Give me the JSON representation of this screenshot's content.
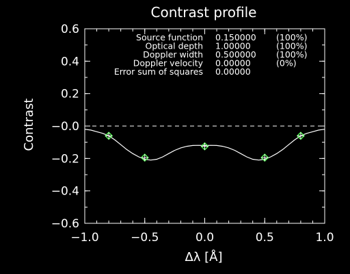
{
  "chart_data": {
    "type": "line",
    "title": "Contrast profile",
    "xlabel": "Δλ [Å]",
    "ylabel": "Contrast",
    "xlim": [
      -1.0,
      1.0
    ],
    "ylim": [
      -0.6,
      0.6
    ],
    "xticks": [
      "−1.0",
      "−0.5",
      "0.0",
      "0.5",
      "1.0"
    ],
    "xtick_values": [
      -1.0,
      -0.5,
      0.0,
      0.5,
      1.0
    ],
    "yticks": [
      "0.6",
      "0.4",
      "0.2",
      "−0.0",
      "−0.2",
      "−0.4",
      "−0.6"
    ],
    "ytick_values": [
      0.6,
      0.4,
      0.2,
      0.0,
      -0.2,
      -0.4,
      -0.6
    ],
    "colors": {
      "background": "#000000",
      "axes": "#ffffff",
      "curve": "#ffffff",
      "markers": "#55ff55",
      "marker_outline": "#ffffff"
    },
    "reference_line": {
      "y": 0.0,
      "style": "dashed"
    },
    "curve": {
      "x": [
        -1.0,
        -0.95,
        -0.9,
        -0.85,
        -0.8,
        -0.75,
        -0.7,
        -0.65,
        -0.6,
        -0.55,
        -0.5,
        -0.45,
        -0.4,
        -0.35,
        -0.3,
        -0.25,
        -0.2,
        -0.15,
        -0.1,
        -0.05,
        0.0,
        0.05,
        0.1,
        0.15,
        0.2,
        0.25,
        0.3,
        0.35,
        0.4,
        0.45,
        0.5,
        0.55,
        0.6,
        0.65,
        0.7,
        0.75,
        0.8,
        0.85,
        0.9,
        0.95,
        1.0
      ],
      "y": [
        -0.02,
        -0.025,
        -0.035,
        -0.045,
        -0.06,
        -0.085,
        -0.115,
        -0.145,
        -0.17,
        -0.19,
        -0.205,
        -0.21,
        -0.205,
        -0.19,
        -0.17,
        -0.15,
        -0.135,
        -0.125,
        -0.12,
        -0.119,
        -0.12,
        -0.119,
        -0.12,
        -0.125,
        -0.135,
        -0.15,
        -0.17,
        -0.19,
        -0.205,
        -0.21,
        -0.205,
        -0.19,
        -0.17,
        -0.145,
        -0.115,
        -0.085,
        -0.06,
        -0.045,
        -0.035,
        -0.025,
        -0.02
      ]
    },
    "points": [
      {
        "x": -0.8,
        "y": -0.06
      },
      {
        "x": -0.5,
        "y": -0.195
      },
      {
        "x": 0.0,
        "y": -0.125
      },
      {
        "x": 0.5,
        "y": -0.195
      },
      {
        "x": 0.8,
        "y": -0.06
      }
    ],
    "annotations": [
      {
        "label": "Source function",
        "value": "0.150000",
        "pct": "(100%)"
      },
      {
        "label": "Optical depth",
        "value": "1.00000",
        "pct": "(100%)"
      },
      {
        "label": "Doppler width",
        "value": "0.500000",
        "pct": "(100%)"
      },
      {
        "label": "Doppler velocity",
        "value": "0.00000",
        "pct": "(0%)"
      },
      {
        "label": "Error sum of squares",
        "value": "0.00000",
        "pct": ""
      }
    ]
  }
}
